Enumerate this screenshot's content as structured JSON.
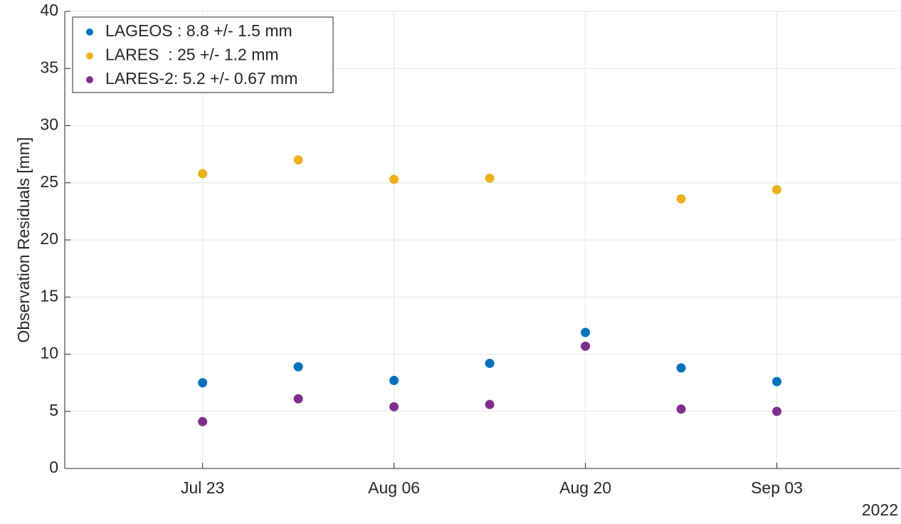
{
  "chart_data": {
    "type": "scatter",
    "categories": [
      "Jul 23",
      null,
      "Aug 06",
      null,
      "Aug 20",
      null,
      "Sep 03"
    ],
    "x_secondary_label": "2022",
    "ylabel": "Observation Residuals [mm]",
    "ylim": [
      0,
      40
    ],
    "yticks": [
      0,
      5,
      10,
      15,
      20,
      25,
      30,
      35,
      40
    ],
    "grid": true,
    "legend": "upper left",
    "series": [
      {
        "name": "LAGEOS : 8.8 +/- 1.5 mm",
        "color": "#0072BD",
        "values": [
          7.5,
          8.9,
          7.7,
          9.2,
          11.9,
          8.8,
          7.6
        ]
      },
      {
        "name": "LARES  : 25 +/- 1.2 mm",
        "color": "#EDB120",
        "values": [
          25.8,
          27.0,
          25.3,
          25.4,
          null,
          23.6,
          24.4
        ]
      },
      {
        "name": "LARES-2: 5.2 +/- 0.67 mm",
        "color": "#7E2F8E",
        "values": [
          4.1,
          6.1,
          5.4,
          5.6,
          10.7,
          5.2,
          5.0
        ]
      }
    ]
  }
}
